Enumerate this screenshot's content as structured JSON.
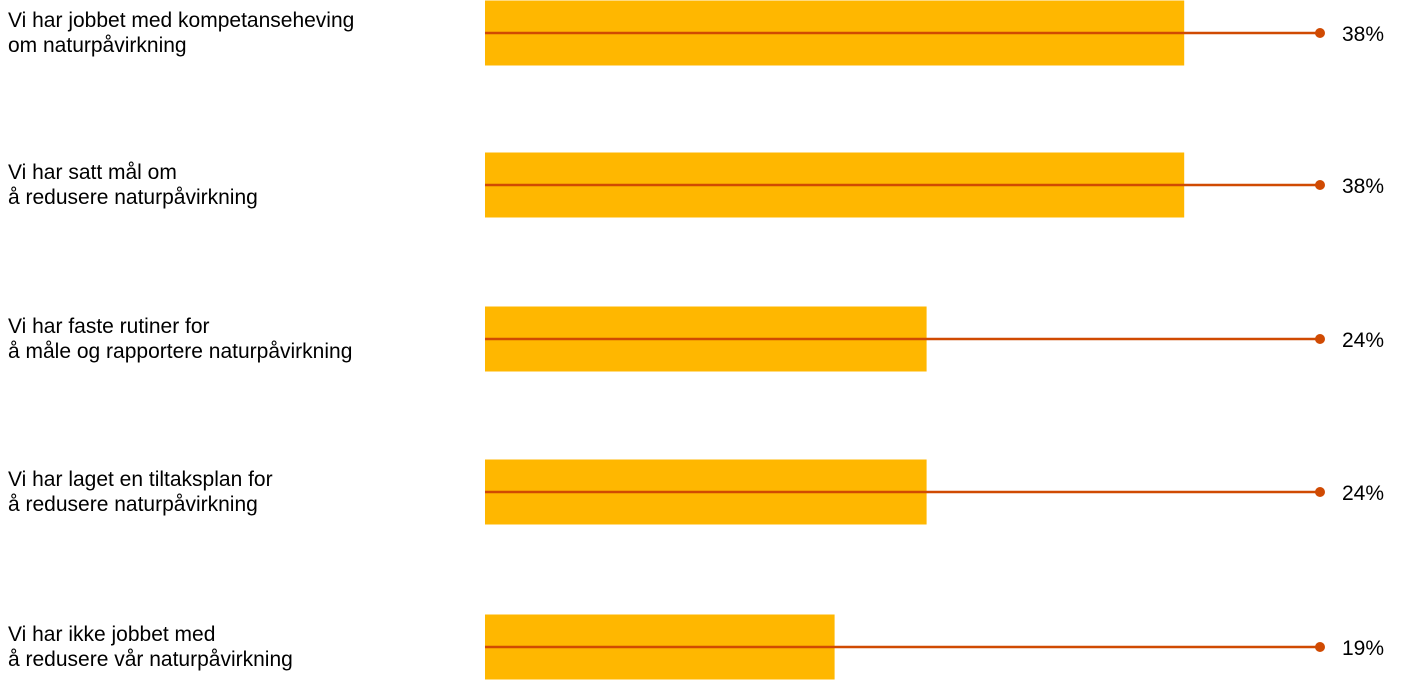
{
  "chart_data": {
    "type": "bar",
    "orientation": "horizontal",
    "categories": [
      [
        "Vi har jobbet med kompetanseheving",
        "om naturpåvirkning"
      ],
      [
        "Vi har satt mål om",
        "å redusere naturpåvirkning"
      ],
      [
        "Vi har faste rutiner for",
        "å måle og rapportere naturpåvirkning"
      ],
      [
        "Vi har laget en tiltaksplan for",
        "å redusere naturpåvirkning"
      ],
      [
        "Vi har ikke jobbet med",
        "å redusere vår naturpåvirkning"
      ]
    ],
    "values": [
      38,
      38,
      24,
      24,
      19
    ],
    "value_labels": [
      "38%",
      "38%",
      "24%",
      "24%",
      "19%"
    ],
    "xlim": [
      0,
      50
    ],
    "grid": false,
    "legend": "none",
    "colors": {
      "bar": "#FFB700",
      "line": "#D04A02",
      "text": "#000000"
    }
  }
}
